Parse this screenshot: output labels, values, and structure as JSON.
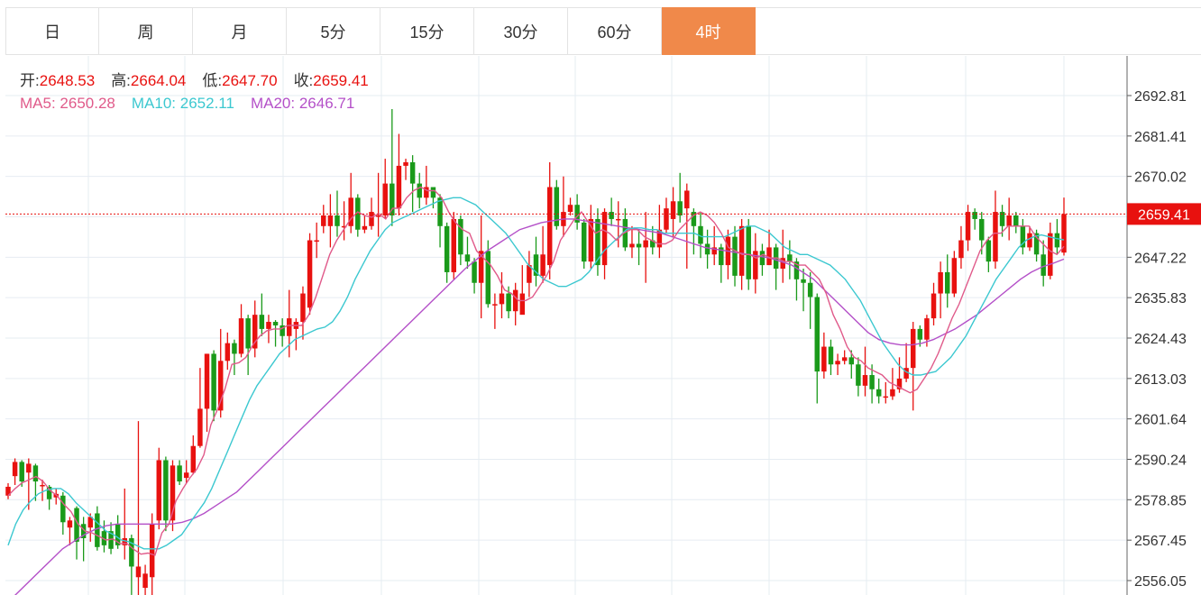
{
  "tabs": [
    {
      "label": "日",
      "active": false
    },
    {
      "label": "周",
      "active": false
    },
    {
      "label": "月",
      "active": false
    },
    {
      "label": "5分",
      "active": false
    },
    {
      "label": "15分",
      "active": false
    },
    {
      "label": "30分",
      "active": false
    },
    {
      "label": "60分",
      "active": false
    },
    {
      "label": "4时",
      "active": true
    }
  ],
  "info": {
    "open_label": "开:",
    "open": "2648.53",
    "high_label": "高:",
    "high": "2664.04",
    "low_label": "低:",
    "low": "2647.70",
    "close_label": "收:",
    "close": "2659.41",
    "ma5_label": "MA5:",
    "ma5": "2650.28",
    "ma10_label": "MA10:",
    "ma10": "2652.11",
    "ma20_label": "MA20:",
    "ma20": "2646.71"
  },
  "colors": {
    "up": "#e8110f",
    "down": "#1a9a1a",
    "ma5": "#e05a8a",
    "ma10": "#3cc8d0",
    "ma20": "#b450c8",
    "active_tab": "#f0894a",
    "grid": "#e6ecf2",
    "price_tag": "#e8110f"
  },
  "chart_data": {
    "type": "candlestick",
    "y_ticks": [
      "2692.81",
      "2681.41",
      "2670.02",
      "2658.62",
      "2647.22",
      "2635.83",
      "2624.43",
      "2613.03",
      "2601.64",
      "2590.24",
      "2578.85",
      "2567.45",
      "2556.05"
    ],
    "last_price": "2659.41",
    "grid": true,
    "candles": [
      [
        2580.0,
        2582.5,
        2579.0,
        2583.5
      ],
      [
        2585.5,
        2589.5,
        2583.0,
        2590.5
      ],
      [
        2589.5,
        2584.0,
        2582.5,
        2590.0
      ],
      [
        2586.5,
        2589.0,
        2576.0,
        2590.5
      ],
      [
        2588.5,
        2584.0,
        2578.5,
        2589.0
      ],
      [
        2583.0,
        2583.0,
        2578.5,
        2584.5
      ],
      [
        2582.5,
        2579.0,
        2576.0,
        2583.0
      ],
      [
        2579.5,
        2580.5,
        2577.5,
        2582.0
      ],
      [
        2580.0,
        2572.5,
        2569.0,
        2581.0
      ],
      [
        2571.0,
        2573.0,
        2566.0,
        2574.0
      ],
      [
        2576.5,
        2567.0,
        2562.0,
        2577.0
      ],
      [
        2572.0,
        2568.0,
        2561.5,
        2574.0
      ],
      [
        2571.0,
        2574.0,
        2567.0,
        2575.0
      ],
      [
        2575.0,
        2565.5,
        2564.5,
        2577.0
      ],
      [
        2570.0,
        2566.0,
        2564.0,
        2573.0
      ],
      [
        2570.0,
        2565.0,
        2563.5,
        2572.5
      ],
      [
        2572.0,
        2566.0,
        2565.0,
        2574.5
      ],
      [
        2566.0,
        2568.0,
        2562.0,
        2582.0
      ],
      [
        2568.0,
        2560.0,
        2552.0,
        2569.0
      ],
      [
        2557.0,
        2560.0,
        2550.0,
        2601.0
      ],
      [
        2554.0,
        2558.0,
        2549.0,
        2560.5
      ],
      [
        2557.0,
        2572.0,
        2551.0,
        2575.0
      ],
      [
        2573.0,
        2590.0,
        2570.5,
        2593.5
      ],
      [
        2590.0,
        2573.0,
        2570.0,
        2591.0
      ],
      [
        2573.0,
        2588.5,
        2570.0,
        2590.0
      ],
      [
        2588.5,
        2584.0,
        2583.0,
        2590.0
      ],
      [
        2585.0,
        2586.5,
        2583.5,
        2590.0
      ],
      [
        2586.5,
        2594.0,
        2586.0,
        2597.0
      ],
      [
        2594.0,
        2604.5,
        2593.5,
        2616.0
      ],
      [
        2604.5,
        2620.0,
        2598.0,
        2620.0
      ],
      [
        2620.0,
        2604.0,
        2601.0,
        2621.0
      ],
      [
        2604.0,
        2618.0,
        2602.0,
        2627.0
      ],
      [
        2618.0,
        2623.0,
        2615.5,
        2626.0
      ],
      [
        2623.0,
        2620.0,
        2614.0,
        2624.0
      ],
      [
        2620.0,
        2630.0,
        2619.0,
        2634.0
      ],
      [
        2630.0,
        2621.5,
        2614.0,
        2631.0
      ],
      [
        2621.5,
        2631.0,
        2619.0,
        2635.0
      ],
      [
        2631.0,
        2627.0,
        2625.0,
        2637.0
      ],
      [
        2627.0,
        2629.0,
        2623.0,
        2631.0
      ],
      [
        2629.0,
        2628.0,
        2622.0,
        2629.5
      ],
      [
        2628.0,
        2625.0,
        2622.0,
        2630.0
      ],
      [
        2625.0,
        2630.0,
        2619.0,
        2638.0
      ],
      [
        2627.0,
        2629.0,
        2621.0,
        2630.0
      ],
      [
        2629.0,
        2637.0,
        2624.0,
        2639.0
      ],
      [
        2633.0,
        2652.0,
        2631.0,
        2654.0
      ],
      [
        2652.0,
        2652.0,
        2647.0,
        2657.0
      ],
      [
        2656.0,
        2659.0,
        2654.0,
        2662.0
      ],
      [
        2656.0,
        2659.0,
        2650.0,
        2665.0
      ],
      [
        2659.0,
        2656.0,
        2653.0,
        2666.0
      ],
      [
        2656.0,
        2656.0,
        2652.0,
        2663.0
      ],
      [
        2656.0,
        2664.0,
        2654.0,
        2671.0
      ],
      [
        2664.0,
        2655.0,
        2653.0,
        2665.0
      ],
      [
        2655.0,
        2656.0,
        2654.0,
        2659.0
      ],
      [
        2656.0,
        2660.0,
        2655.0,
        2664.0
      ],
      [
        2659.0,
        2659.0,
        2653.0,
        2671.0
      ],
      [
        2659.0,
        2668.0,
        2658.0,
        2675.0
      ],
      [
        2668.0,
        2659.0,
        2656.0,
        2689.0
      ],
      [
        2661.0,
        2673.0,
        2659.0,
        2682.0
      ],
      [
        2673.0,
        2674.0,
        2669.0,
        2675.0
      ],
      [
        2674.0,
        2668.0,
        2660.0,
        2676.0
      ],
      [
        2668.0,
        2664.0,
        2661.0,
        2671.0
      ],
      [
        2664.0,
        2667.0,
        2662.0,
        2673.0
      ],
      [
        2667.0,
        2664.0,
        2661.0,
        2666.0
      ],
      [
        2664.0,
        2656.0,
        2650.0,
        2665.0
      ],
      [
        2656.0,
        2643.0,
        2640.0,
        2657.0
      ],
      [
        2643.0,
        2658.0,
        2641.0,
        2660.0
      ],
      [
        2658.0,
        2648.0,
        2645.0,
        2659.0
      ],
      [
        2648.0,
        2646.0,
        2644.0,
        2653.0
      ],
      [
        2646.0,
        2640.0,
        2637.0,
        2647.0
      ],
      [
        2640.0,
        2649.0,
        2630.0,
        2659.0
      ],
      [
        2649.0,
        2634.0,
        2633.0,
        2652.0
      ],
      [
        2634.0,
        2634.0,
        2627.0,
        2637.0
      ],
      [
        2634.0,
        2637.0,
        2630.0,
        2643.0
      ],
      [
        2637.0,
        2632.0,
        2630.0,
        2639.0
      ],
      [
        2632.0,
        2638.0,
        2628.0,
        2640.0
      ],
      [
        2631.0,
        2637.0,
        2632.0,
        2645.0
      ],
      [
        2640.0,
        2645.0,
        2636.0,
        2649.0
      ],
      [
        2648.0,
        2642.0,
        2639.0,
        2653.0
      ],
      [
        2642.0,
        2648.0,
        2640.0,
        2656.0
      ],
      [
        2645.0,
        2667.0,
        2641.0,
        2674.0
      ],
      [
        2667.0,
        2656.0,
        2655.0,
        2669.0
      ],
      [
        2656.0,
        2660.0,
        2653.0,
        2670.0
      ],
      [
        2660.0,
        2662.0,
        2659.0,
        2664.0
      ],
      [
        2662.0,
        2657.0,
        2655.0,
        2665.0
      ],
      [
        2657.0,
        2646.0,
        2644.0,
        2658.0
      ],
      [
        2646.0,
        2658.0,
        2644.0,
        2662.0
      ],
      [
        2658.0,
        2645.0,
        2642.0,
        2661.0
      ],
      [
        2645.0,
        2660.0,
        2641.0,
        2661.0
      ],
      [
        2660.0,
        2658.0,
        2656.0,
        2664.0
      ],
      [
        2658.0,
        2658.0,
        2650.0,
        2663.0
      ],
      [
        2658.0,
        2650.0,
        2649.0,
        2661.0
      ],
      [
        2650.0,
        2651.0,
        2647.0,
        2656.0
      ],
      [
        2651.0,
        2650.0,
        2645.0,
        2655.0
      ],
      [
        2650.0,
        2652.0,
        2640.0,
        2660.0
      ],
      [
        2652.0,
        2650.0,
        2648.0,
        2656.0
      ],
      [
        2650.0,
        2655.0,
        2647.0,
        2662.0
      ],
      [
        2655.0,
        2661.0,
        2654.0,
        2664.0
      ],
      [
        2658.0,
        2663.0,
        2653.0,
        2667.0
      ],
      [
        2663.0,
        2659.0,
        2657.0,
        2671.0
      ],
      [
        2661.0,
        2666.0,
        2644.0,
        2668.0
      ],
      [
        2660.0,
        2656.0,
        2648.0,
        2661.0
      ],
      [
        2656.0,
        2651.0,
        2647.0,
        2660.0
      ],
      [
        2651.0,
        2648.0,
        2644.0,
        2655.0
      ],
      [
        2648.0,
        2650.0,
        2645.0,
        2656.0
      ],
      [
        2650.0,
        2645.0,
        2640.0,
        2651.0
      ],
      [
        2645.0,
        2653.0,
        2641.0,
        2655.0
      ],
      [
        2653.0,
        2642.0,
        2639.0,
        2656.0
      ],
      [
        2642.0,
        2656.0,
        2638.0,
        2658.0
      ],
      [
        2656.0,
        2641.0,
        2638.0,
        2658.0
      ],
      [
        2641.0,
        2649.0,
        2637.0,
        2654.0
      ],
      [
        2649.0,
        2645.0,
        2642.0,
        2651.0
      ],
      [
        2645.0,
        2650.0,
        2645.0,
        2655.0
      ],
      [
        2650.0,
        2644.0,
        2638.0,
        2651.0
      ],
      [
        2644.0,
        2647.0,
        2640.0,
        2655.0
      ],
      [
        2648.0,
        2646.0,
        2641.0,
        2652.0
      ],
      [
        2646.0,
        2641.0,
        2635.0,
        2647.0
      ],
      [
        2641.0,
        2640.0,
        2632.0,
        2644.0
      ],
      [
        2640.0,
        2636.0,
        2627.0,
        2643.0
      ],
      [
        2636.0,
        2615.0,
        2606.0,
        2637.0
      ],
      [
        2615.0,
        2622.0,
        2613.0,
        2626.0
      ],
      [
        2622.0,
        2617.0,
        2614.0,
        2624.0
      ],
      [
        2617.0,
        2618.0,
        2614.0,
        2620.0
      ],
      [
        2618.0,
        2619.0,
        2617.0,
        2621.0
      ],
      [
        2619.0,
        2617.0,
        2613.0,
        2621.0
      ],
      [
        2617.0,
        2611.0,
        2608.0,
        2619.0
      ],
      [
        2611.0,
        2614.0,
        2608.0,
        2622.0
      ],
      [
        2614.0,
        2610.0,
        2606.0,
        2617.0
      ],
      [
        2610.0,
        2608.0,
        2606.0,
        2613.0
      ],
      [
        2608.0,
        2608.0,
        2606.0,
        2612.0
      ],
      [
        2608.0,
        2610.0,
        2607.0,
        2616.0
      ],
      [
        2610.0,
        2613.0,
        2609.0,
        2619.0
      ],
      [
        2613.0,
        2616.0,
        2612.0,
        2623.0
      ],
      [
        2616.0,
        2627.0,
        2604.0,
        2629.0
      ],
      [
        2627.0,
        2624.0,
        2622.0,
        2628.0
      ],
      [
        2624.0,
        2630.0,
        2622.0,
        2631.0
      ],
      [
        2630.0,
        2637.0,
        2628.0,
        2640.0
      ],
      [
        2637.0,
        2643.0,
        2630.0,
        2646.0
      ],
      [
        2643.0,
        2637.0,
        2633.0,
        2648.0
      ],
      [
        2637.0,
        2647.0,
        2636.0,
        2649.0
      ],
      [
        2647.0,
        2652.0,
        2644.0,
        2656.0
      ],
      [
        2652.0,
        2660.0,
        2649.0,
        2662.0
      ],
      [
        2660.0,
        2658.0,
        2655.0,
        2661.0
      ],
      [
        2658.0,
        2652.0,
        2648.0,
        2660.0
      ],
      [
        2652.0,
        2646.0,
        2643.0,
        2653.0
      ],
      [
        2646.0,
        2660.0,
        2644.0,
        2666.0
      ],
      [
        2660.0,
        2656.0,
        2653.0,
        2662.0
      ],
      [
        2656.0,
        2659.0,
        2652.0,
        2664.0
      ],
      [
        2659.0,
        2656.0,
        2654.0,
        2660.0
      ],
      [
        2656.0,
        2650.0,
        2648.0,
        2658.0
      ],
      [
        2650.0,
        2654.0,
        2649.0,
        2656.0
      ],
      [
        2654.0,
        2648.0,
        2646.0,
        2655.0
      ],
      [
        2648.0,
        2642.0,
        2639.0,
        2652.0
      ],
      [
        2642.0,
        2654.0,
        2641.0,
        2657.0
      ],
      [
        2654.0,
        2650.0,
        2648.0,
        2658.0
      ],
      [
        2648.53,
        2659.41,
        2647.7,
        2664.04
      ]
    ],
    "ma5": [
      2580.0,
      2582.0,
      2583.6,
      2584.5,
      2585.4,
      2584.0,
      2581.5,
      2580.0,
      2577.5,
      2575.5,
      2572.0,
      2570.0,
      2569.5,
      2568.5,
      2567.5,
      2567.8,
      2566.5,
      2566.5,
      2564.8,
      2563.5,
      2563.8,
      2563.2,
      2569.5,
      2572.0,
      2578.5,
      2582.0,
      2585.0,
      2587.5,
      2591.5,
      2600.0,
      2604.5,
      2610.0,
      2617.0,
      2617.5,
      2619.0,
      2622.5,
      2625.0,
      2626.5,
      2627.0,
      2627.0,
      2628.0,
      2628.0,
      2628.0,
      2631.0,
      2636.0,
      2642.0,
      2648.0,
      2652.0,
      2655.0,
      2658.0,
      2660.0,
      2659.0,
      2658.5,
      2659.5,
      2658.0,
      2661.0,
      2661.0,
      2664.0,
      2666.0,
      2667.0,
      2666.0,
      2666.0,
      2664.0,
      2660.0,
      2657.0,
      2655.0,
      2654.0,
      2649.0,
      2647.0,
      2645.0,
      2642.0,
      2638.0,
      2637.0,
      2635.0,
      2635.0,
      2636.0,
      2639.0,
      2642.0,
      2646.0,
      2652.0,
      2655.0,
      2658.0,
      2660.0,
      2657.0,
      2654.0,
      2655.0,
      2654.0,
      2652.0,
      2654.0,
      2655.0,
      2655.0,
      2653.0,
      2652.0,
      2651.0,
      2651.0,
      2652.0,
      2655.0,
      2657.0,
      2659.0,
      2660.0,
      2659.0,
      2657.0,
      2654.0,
      2650.0,
      2649.0,
      2648.0,
      2648.0,
      2647.0,
      2648.0,
      2647.0,
      2647.0,
      2646.0,
      2646.0,
      2645.0,
      2645.0,
      2643.0,
      2641.0,
      2637.0,
      2631.0,
      2627.0,
      2622.0,
      2619.0,
      2618.0,
      2616.0,
      2615.0,
      2614.0,
      2612.0,
      2611.0,
      2610.0,
      2609.0,
      2610.0,
      2613.0,
      2616.0,
      2620.0,
      2625.0,
      2630.0,
      2634.0,
      2639.0,
      2644.0,
      2649.0,
      2652.0,
      2654.0,
      2654.0,
      2656.0,
      2656.0,
      2656.0,
      2656.0,
      2653.0,
      2651.0,
      2649.0,
      2648.0,
      2650.28
    ],
    "ma10": [
      2566.0,
      2572.0,
      2576.0,
      2578.5,
      2580.5,
      2581.5,
      2582.0,
      2582.0,
      2580.5,
      2578.0,
      2576.0,
      2574.0,
      2572.0,
      2570.0,
      2569.0,
      2567.5,
      2567.0,
      2566.0,
      2565.0,
      2565.0,
      2565.0,
      2566.0,
      2567.5,
      2569.0,
      2572.0,
      2575.0,
      2578.0,
      2582.0,
      2587.0,
      2592.0,
      2597.0,
      2602.0,
      2607.0,
      2611.0,
      2614.0,
      2617.0,
      2620.0,
      2622.0,
      2624.0,
      2625.0,
      2626.0,
      2627.0,
      2627.5,
      2629.0,
      2632.0,
      2636.0,
      2641.0,
      2645.0,
      2649.0,
      2652.0,
      2655.0,
      2657.0,
      2658.0,
      2659.0,
      2660.0,
      2661.0,
      2662.0,
      2663.0,
      2663.5,
      2664.0,
      2664.0,
      2663.0,
      2662.0,
      2660.0,
      2658.0,
      2656.0,
      2654.0,
      2651.0,
      2648.0,
      2645.0,
      2643.0,
      2641.0,
      2640.0,
      2639.0,
      2639.0,
      2640.0,
      2641.0,
      2643.0,
      2646.0,
      2649.0,
      2651.0,
      2653.0,
      2655.0,
      2655.5,
      2655.5,
      2655.0,
      2655.0,
      2654.0,
      2654.0,
      2654.0,
      2654.0,
      2654.0,
      2653.0,
      2653.0,
      2653.0,
      2653.0,
      2654.0,
      2655.0,
      2656.0,
      2656.0,
      2655.0,
      2654.0,
      2652.0,
      2650.0,
      2649.0,
      2648.0,
      2648.0,
      2647.0,
      2646.0,
      2645.0,
      2643.0,
      2641.0,
      2638.0,
      2635.0,
      2631.0,
      2627.0,
      2623.0,
      2620.0,
      2617.0,
      2615.0,
      2614.0,
      2614.0,
      2614.5,
      2615.0,
      2617.0,
      2619.0,
      2622.0,
      2625.0,
      2629.0,
      2633.0,
      2637.0,
      2641.0,
      2644.0,
      2647.0,
      2650.0,
      2652.0,
      2653.0,
      2653.5,
      2653.0,
      2652.5,
      2652.11
    ],
    "ma20": [
      2550.0,
      2553.0,
      2556.0,
      2559.0,
      2562.0,
      2565.0,
      2567.0,
      2569.0,
      2570.5,
      2571.5,
      2572.0,
      2572.0,
      2572.0,
      2572.0,
      2572.0,
      2572.0,
      2572.5,
      2573.5,
      2575.0,
      2577.0,
      2579.0,
      2581.0,
      2584.0,
      2587.0,
      2590.0,
      2593.0,
      2596.0,
      2599.0,
      2602.0,
      2605.0,
      2608.0,
      2611.0,
      2614.0,
      2617.0,
      2620.0,
      2623.0,
      2626.0,
      2629.0,
      2632.0,
      2635.0,
      2638.0,
      2641.0,
      2644.0,
      2646.5,
      2649.0,
      2651.0,
      2653.0,
      2655.0,
      2656.0,
      2657.0,
      2657.5,
      2658.0,
      2658.0,
      2657.5,
      2657.0,
      2656.5,
      2656.0,
      2655.5,
      2655.0,
      2654.5,
      2654.0,
      2653.0,
      2652.0,
      2651.0,
      2650.0,
      2649.5,
      2649.0,
      2648.5,
      2648.0,
      2647.5,
      2647.0,
      2646.0,
      2645.0,
      2643.0,
      2641.0,
      2638.0,
      2635.0,
      2632.0,
      2629.0,
      2626.0,
      2624.0,
      2623.0,
      2622.5,
      2622.5,
      2623.0,
      2624.0,
      2625.5,
      2627.0,
      2629.0,
      2631.0,
      2633.5,
      2636.0,
      2638.5,
      2641.0,
      2643.0,
      2644.5,
      2645.5,
      2646.71
    ]
  }
}
